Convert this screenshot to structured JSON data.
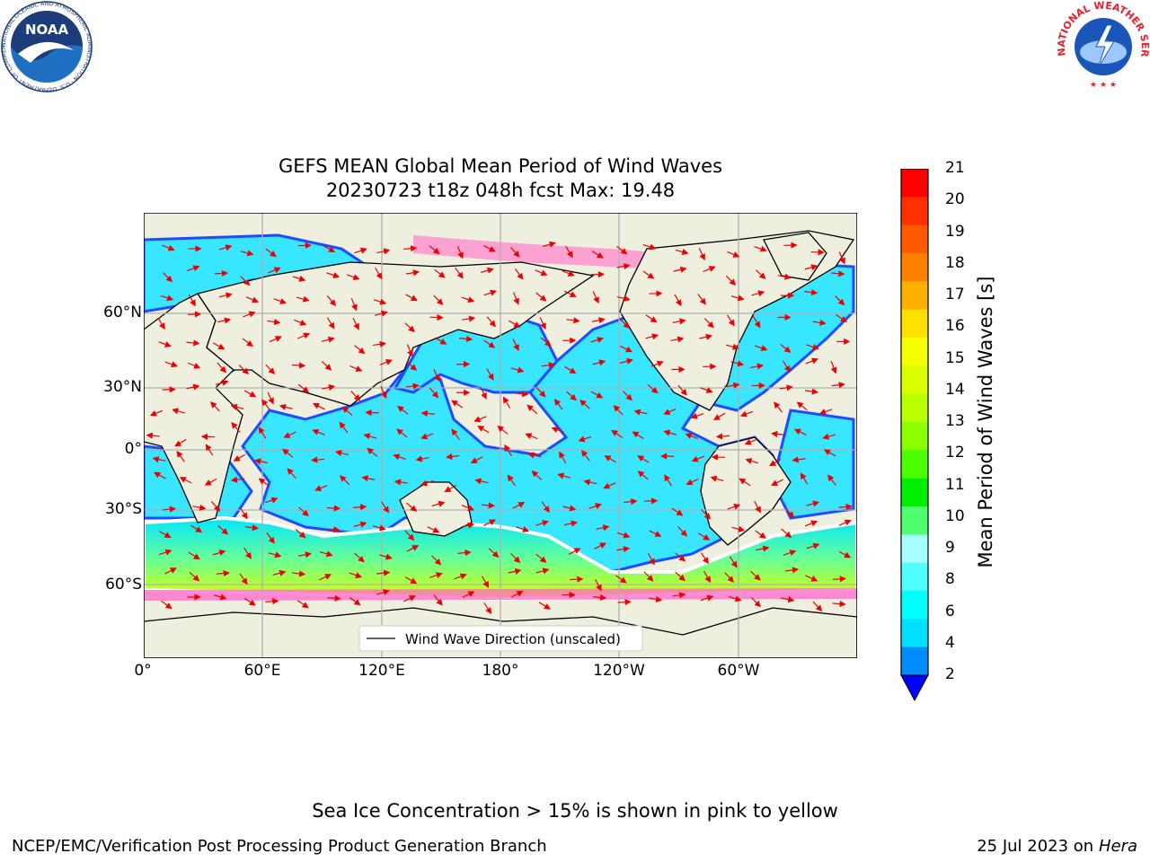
{
  "title_line1": "GEFS MEAN Global Mean Period of Wind Waves",
  "title_line2": "20230723 t18z 048h fcst   Max: 19.48",
  "legend_text": "Wind Wave Direction (unscaled)",
  "x_ticks": [
    "0°",
    "60°E",
    "120°E",
    "180°",
    "120°W",
    "60°W"
  ],
  "y_ticks": [
    "60°N",
    "30°N",
    "0°",
    "30°S",
    "60°S"
  ],
  "colorbar": {
    "label": "Mean Period of Wind Waves [s]",
    "ticks": [
      "21",
      "20",
      "19",
      "18",
      "17",
      "16",
      "15",
      "14",
      "13",
      "12",
      "11",
      "10",
      "9",
      "8",
      "6",
      "4",
      "2"
    ],
    "colors": [
      "#ff0000",
      "#ff3000",
      "#ff5a00",
      "#ff8000",
      "#ffb000",
      "#ffe000",
      "#f5ff00",
      "#dcff00",
      "#b9ff00",
      "#8cff00",
      "#4aff00",
      "#00ee00",
      "#50ff70",
      "#a8ffff",
      "#50ffff",
      "#00ffff",
      "#00dfff",
      "#008cff"
    ],
    "extend_color": "#0000ff"
  },
  "note": "Sea Ice Concentration > 15% is shown in pink to yellow",
  "footer_left": "NCEP/EMC/Verification Post Processing Product Generation Branch",
  "footer_date": "25 Jul 2023 on",
  "footer_machine": "Hera",
  "logos": {
    "noaa": "NOAA",
    "noaa_ring": "NATIONAL OCEANIC AND ATMOSPHERIC ADMINISTRATION · U.S. DEPARTMENT OF COMMERCE",
    "nws_ring": "NATIONAL WEATHER SERVICE"
  }
}
